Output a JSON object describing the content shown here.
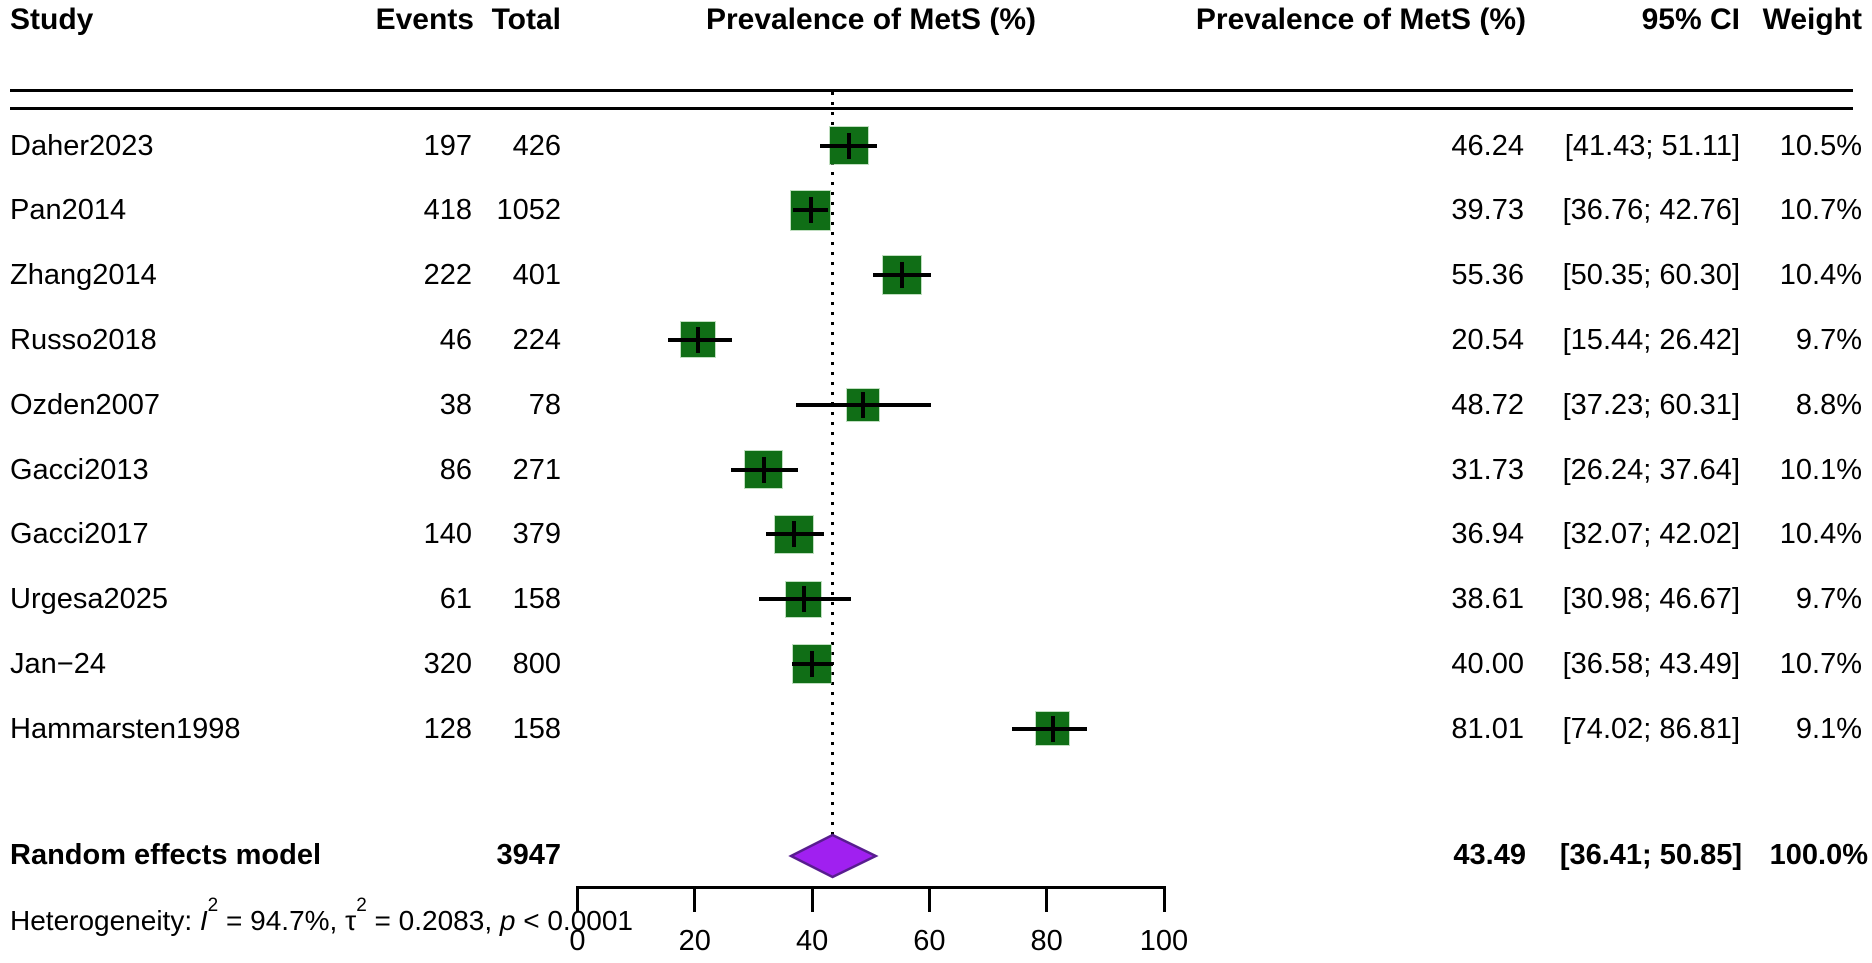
{
  "header": {
    "study": "Study",
    "events": "Events",
    "total": "Total",
    "plot_title": "Prevalence of MetS (%)",
    "prevalence": "Prevalence of MetS (%)",
    "ci": "95% CI",
    "weight": "Weight"
  },
  "chart_data": {
    "type": "forest",
    "title": "Prevalence of MetS (%)",
    "x_axis": {
      "min": 0,
      "max": 100,
      "ticks": [
        "0",
        "20",
        "40",
        "60",
        "80",
        "100"
      ],
      "tick_values": [
        0,
        20,
        40,
        60,
        80,
        100
      ]
    },
    "pooled_reference_line": 43.49,
    "studies": [
      {
        "study": "Daher2023",
        "events": "197",
        "total": "426",
        "prevalence": "46.24",
        "ci_label": "[41.43; 51.11]",
        "weight": "10.5%",
        "prev_value": 46.24,
        "ci_low": 41.43,
        "ci_high": 51.11,
        "weight_value": 10.5
      },
      {
        "study": "Pan2014",
        "events": "418",
        "total": "1052",
        "prevalence": "39.73",
        "ci_label": "[36.76; 42.76]",
        "weight": "10.7%",
        "prev_value": 39.73,
        "ci_low": 36.76,
        "ci_high": 42.76,
        "weight_value": 10.7
      },
      {
        "study": "Zhang2014",
        "events": "222",
        "total": "401",
        "prevalence": "55.36",
        "ci_label": "[50.35; 60.30]",
        "weight": "10.4%",
        "prev_value": 55.36,
        "ci_low": 50.35,
        "ci_high": 60.3,
        "weight_value": 10.4
      },
      {
        "study": "Russo2018",
        "events": "46",
        "total": "224",
        "prevalence": "20.54",
        "ci_label": "[15.44; 26.42]",
        "weight": "9.7%",
        "prev_value": 20.54,
        "ci_low": 15.44,
        "ci_high": 26.42,
        "weight_value": 9.7
      },
      {
        "study": "Ozden2007",
        "events": "38",
        "total": "78",
        "prevalence": "48.72",
        "ci_label": "[37.23; 60.31]",
        "weight": "8.8%",
        "prev_value": 48.72,
        "ci_low": 37.23,
        "ci_high": 60.31,
        "weight_value": 8.8
      },
      {
        "study": "Gacci2013",
        "events": "86",
        "total": "271",
        "prevalence": "31.73",
        "ci_label": "[26.24; 37.64]",
        "weight": "10.1%",
        "prev_value": 31.73,
        "ci_low": 26.24,
        "ci_high": 37.64,
        "weight_value": 10.1
      },
      {
        "study": "Gacci2017",
        "events": "140",
        "total": "379",
        "prevalence": "36.94",
        "ci_label": "[32.07; 42.02]",
        "weight": "10.4%",
        "prev_value": 36.94,
        "ci_low": 32.07,
        "ci_high": 42.02,
        "weight_value": 10.4
      },
      {
        "study": "Urgesa2025",
        "events": "61",
        "total": "158",
        "prevalence": "38.61",
        "ci_label": "[30.98; 46.67]",
        "weight": "9.7%",
        "prev_value": 38.61,
        "ci_low": 30.98,
        "ci_high": 46.67,
        "weight_value": 9.7
      },
      {
        "study": "Jan−24",
        "events": "320",
        "total": "800",
        "prevalence": "40.00",
        "ci_label": "[36.58; 43.49]",
        "weight": "10.7%",
        "prev_value": 40.0,
        "ci_low": 36.58,
        "ci_high": 43.49,
        "weight_value": 10.7
      },
      {
        "study": "Hammarsten1998",
        "events": "128",
        "total": "158",
        "prevalence": "81.01",
        "ci_label": "[74.02; 86.81]",
        "weight": "9.1%",
        "prev_value": 81.01,
        "ci_low": 74.02,
        "ci_high": 86.81,
        "weight_value": 9.1
      }
    ],
    "summary": {
      "label": "Random effects model",
      "total": "3947",
      "prevalence": "43.49",
      "ci_label": "[36.41; 50.85]",
      "weight": "100.0%",
      "prev_value": 43.49,
      "ci_low": 36.41,
      "ci_high": 50.85
    },
    "heterogeneity": {
      "prefix": "Heterogeneity: ",
      "i_sym": "I",
      "i_sup": "2",
      "i_eq": " = 94.7%, ",
      "tau_sym": "τ",
      "tau_sup": "2",
      "tau_eq": " = 0.2083, ",
      "p_sym": "p",
      "p_eq": " < 0.0001"
    },
    "colors": {
      "square": "#106e16",
      "diamond_fill": "#a020f0",
      "diamond_stroke": "#581d8f",
      "line": "#000000"
    }
  }
}
